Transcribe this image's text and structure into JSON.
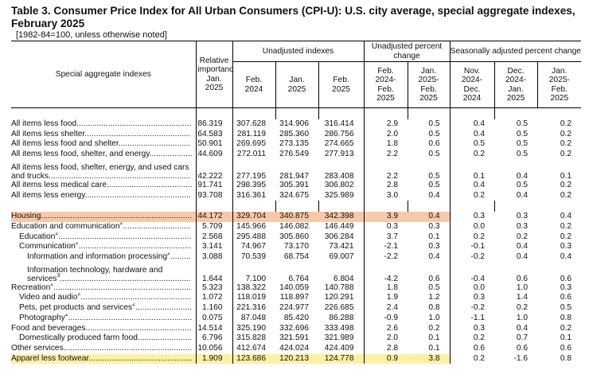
{
  "header": {
    "title": "Table 3. Consumer Price Index for All Urban Consumers (CPI-U): U.S. city average, special aggregate indexes, February 2025",
    "subtitle": "[1982-84=100, unless otherwise noted]"
  },
  "columns": {
    "label": "Special aggregate indexes",
    "relative": "Relative importance Jan. 2025",
    "unadjusted_group": "Unadjusted indexes",
    "unadj_pct_group": "Unadjusted percent change",
    "sa_pct_group": "Seasonally adjusted percent change",
    "c_feb2024": "Feb. 2024",
    "c_jan2025": "Jan. 2025",
    "c_feb2025": "Feb. 2025",
    "c_p1": "Feb. 2024- Feb. 2025",
    "c_p2": "Jan. 2025- Feb. 2025",
    "c_s1": "Nov. 2024- Dec. 2024",
    "c_s2": "Dec. 2024- Jan. 2025",
    "c_s3": "Jan. 2025- Feb. 2025"
  },
  "rows": [
    {
      "label": "All items less food",
      "sup": "",
      "values": [
        "86.319",
        "307.628",
        "314.906",
        "316.414",
        "2.9",
        "0.5",
        "0.4",
        "0.5",
        "0.2"
      ]
    },
    {
      "label": "All items less shelter",
      "sup": "",
      "values": [
        "64.583",
        "281.119",
        "285.360",
        "286.756",
        "2.0",
        "0.5",
        "0.4",
        "0.5",
        "0.2"
      ]
    },
    {
      "label": "All items less food and shelter",
      "sup": "",
      "values": [
        "50.901",
        "269.695",
        "273.135",
        "274.665",
        "1.8",
        "0.6",
        "0.5",
        "0.5",
        "0.2"
      ]
    },
    {
      "label": "All items less food, shelter, and energy",
      "sup": "",
      "values": [
        "44.609",
        "272.011",
        "276.549",
        "277.913",
        "2.2",
        "0.5",
        "0.2",
        "0.5",
        "0.2"
      ]
    },
    {
      "label": "All items less food, shelter, energy, and used cars and trucks",
      "sup": "",
      "values": [
        "42.222",
        "277.195",
        "281.947",
        "283.408",
        "2.2",
        "0.5",
        "0.1",
        "0.4",
        "0.1"
      ]
    },
    {
      "label": "All items less medical care",
      "sup": "",
      "values": [
        "91.741",
        "298.395",
        "305.391",
        "306.802",
        "2.8",
        "0.5",
        "0.4",
        "0.5",
        "0.2"
      ]
    },
    {
      "label": "All items less energy",
      "sup": "",
      "values": [
        "93.708",
        "316.361",
        "324.675",
        "325.989",
        "3.0",
        "0.4",
        "0.2",
        "0.4",
        "0.2"
      ]
    },
    {
      "label": "Housing",
      "sup": "",
      "values": [
        "44.172",
        "329.704",
        "340.875",
        "342.398",
        "3.9",
        "0.4",
        "0.3",
        "0.3",
        "0.4"
      ]
    },
    {
      "label": "Education and communication",
      "sup": "2",
      "values": [
        "5.709",
        "145.966",
        "146.082",
        "146.449",
        "0.3",
        "0.3",
        "0.0",
        "0.3",
        "0.2"
      ]
    },
    {
      "label": "Education",
      "sup": "2",
      "values": [
        "2.568",
        "295.488",
        "305.860",
        "306.284",
        "3.7",
        "0.1",
        "0.2",
        "0.2",
        "0.2"
      ]
    },
    {
      "label": "Communication",
      "sup": "2",
      "values": [
        "3.141",
        "74.967",
        "73.170",
        "73.421",
        "-2.1",
        "0.3",
        "-0.1",
        "0.4",
        "0.3"
      ]
    },
    {
      "label": "Information and information processing",
      "sup": "2",
      "values": [
        "3.088",
        "70.539",
        "68.754",
        "69.007",
        "-2.2",
        "0.4",
        "-0.2",
        "0.4",
        "0.4"
      ]
    },
    {
      "label": "Information technology, hardware and services",
      "sup": "3",
      "values": [
        "1.644",
        "7.100",
        "6.764",
        "6.804",
        "-4.2",
        "0.6",
        "-0.4",
        "0.6",
        "0.6"
      ]
    },
    {
      "label": "Recreation",
      "sup": "2",
      "values": [
        "5.323",
        "138.322",
        "140.059",
        "140.788",
        "1.8",
        "0.5",
        "0.0",
        "1.0",
        "0.3"
      ]
    },
    {
      "label": "Video and audio",
      "sup": "2",
      "values": [
        "1.072",
        "118.019",
        "118.897",
        "120.291",
        "1.9",
        "1.2",
        "0.3",
        "1.4",
        "0.6"
      ]
    },
    {
      "label": "Pets, pet products and services",
      "sup": "2",
      "values": [
        "1.160",
        "221.316",
        "224.977",
        "226.685",
        "2.4",
        "0.8",
        "-0.2",
        "0.2",
        "0.5"
      ]
    },
    {
      "label": "Photography",
      "sup": "2",
      "values": [
        "0.075",
        "87.048",
        "85.420",
        "86.288",
        "-0.9",
        "1.0",
        "-1.1",
        "1.0",
        "0.8"
      ]
    },
    {
      "label": "Food and beverages",
      "sup": "",
      "values": [
        "14.514",
        "325.190",
        "332.696",
        "333.498",
        "2.6",
        "0.2",
        "0.3",
        "0.4",
        "0.2"
      ]
    },
    {
      "label": "Domestically produced farm food",
      "sup": "",
      "values": [
        "6.796",
        "315.828",
        "321.591",
        "321.989",
        "2.0",
        "0.1",
        "0.2",
        "0.7",
        "0.1"
      ]
    },
    {
      "label": "Other services",
      "sup": "",
      "values": [
        "10.056",
        "412.674",
        "424.024",
        "424.409",
        "2.8",
        "0.1",
        "0.6",
        "0.6",
        "0.6"
      ]
    },
    {
      "label": "Apparel less footwear",
      "sup": "",
      "values": [
        "1.909",
        "123.686",
        "120.213",
        "124.778",
        "0.9",
        "3.8",
        "0.2",
        "-1.6",
        "0.8"
      ]
    }
  ],
  "highlight_colors": {
    "orange": "#f7c9a8",
    "yellow": "#fdf0a6"
  }
}
